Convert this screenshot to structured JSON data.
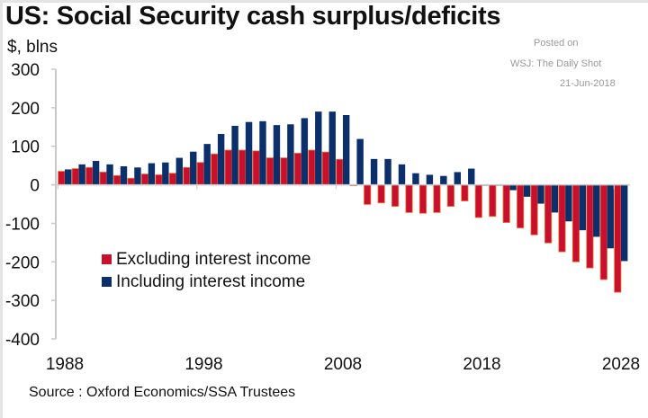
{
  "chart_data": {
    "type": "bar",
    "title": "US: Social Security cash surplus/deficits",
    "ylabel": "$, blns",
    "xlabel": "",
    "ylim": [
      -400,
      300
    ],
    "yticks": [
      300,
      200,
      100,
      0,
      -100,
      -200,
      -300,
      -400
    ],
    "xtick_labels": [
      "1988",
      "1998",
      "2008",
      "2018",
      "2028"
    ],
    "grid": false,
    "legend_position": "center-left",
    "categories": [
      1988,
      1989,
      1990,
      1991,
      1992,
      1993,
      1994,
      1995,
      1996,
      1997,
      1998,
      1999,
      2000,
      2001,
      2002,
      2003,
      2004,
      2005,
      2006,
      2007,
      2008,
      2009,
      2010,
      2011,
      2012,
      2013,
      2014,
      2015,
      2016,
      2017,
      2018,
      2019,
      2020,
      2021,
      2022,
      2023,
      2024,
      2025,
      2026,
      2027,
      2028
    ],
    "series": [
      {
        "name": "Excluding interest income",
        "color": "#c8102e",
        "values": [
          35,
          42,
          45,
          33,
          24,
          17,
          28,
          26,
          30,
          45,
          58,
          80,
          90,
          90,
          88,
          70,
          70,
          82,
          90,
          85,
          66,
          -2,
          -51,
          -47,
          -56,
          -72,
          -74,
          -72,
          -56,
          -42,
          -85,
          -82,
          -98,
          -112,
          -130,
          -151,
          -174,
          -200,
          -216,
          -246,
          -279
        ]
      },
      {
        "name": "Including interest income",
        "color": "#0b2f6b",
        "values": [
          40,
          53,
          62,
          53,
          48,
          45,
          56,
          58,
          70,
          86,
          106,
          132,
          153,
          163,
          165,
          155,
          157,
          173,
          190,
          190,
          181,
          119,
          67,
          67,
          53,
          30,
          26,
          23,
          33,
          42,
          -2,
          -1,
          -14,
          -31,
          -49,
          -72,
          -95,
          -118,
          -135,
          -165,
          -198
        ]
      }
    ],
    "source": "Source : Oxford Economics/SSA Trustees"
  },
  "posted": {
    "line1": "Posted on",
    "line2": "WSJ: The Daily Shot",
    "line3": "21-Jun-2018"
  }
}
